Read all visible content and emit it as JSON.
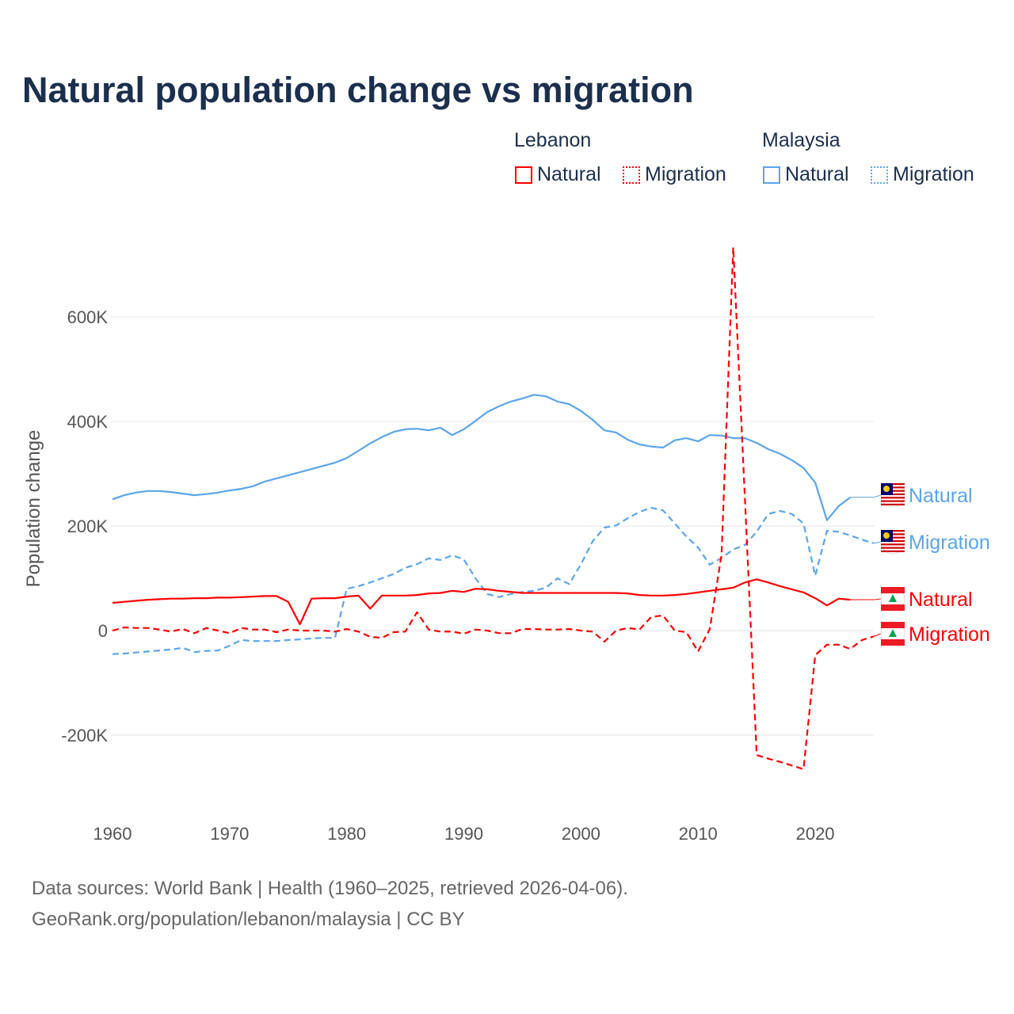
{
  "title": "Natural population change vs migration",
  "legend": {
    "groups": [
      {
        "name": "Lebanon",
        "items": [
          {
            "label": "Natural",
            "color": "#ff0000",
            "style": "solid"
          },
          {
            "label": "Migration",
            "color": "#ff0000",
            "style": "dotted"
          }
        ]
      },
      {
        "name": "Malaysia",
        "items": [
          {
            "label": "Natural",
            "color": "#5aa5ea",
            "style": "solid"
          },
          {
            "label": "Migration",
            "color": "#5aa5ea",
            "style": "dotted"
          }
        ]
      }
    ]
  },
  "footer": {
    "line1": "Data sources: World Bank | Health (1960–2025, retrieved 2026-04-06).",
    "line2": "GeoRank.org/population/lebanon/malaysia | CC BY"
  },
  "chart_data": {
    "type": "line",
    "title": "Natural population change vs migration",
    "xlabel": "",
    "ylabel": "Population change",
    "xlim": [
      1960,
      2025
    ],
    "ylim": [
      -290000,
      740000
    ],
    "x_ticks": [
      1960,
      1970,
      1980,
      1990,
      2000,
      2010,
      2020
    ],
    "y_ticks": [
      {
        "value": -200000,
        "label": "-200K"
      },
      {
        "value": 0,
        "label": "0"
      },
      {
        "value": 200000,
        "label": "200K"
      },
      {
        "value": 400000,
        "label": "400K"
      },
      {
        "value": 600000,
        "label": "600K"
      }
    ],
    "grid": true,
    "series": [
      {
        "name": "Malaysia Natural",
        "end_label": "Natural",
        "country": "Malaysia",
        "color": "#5aa5ea",
        "dash": false,
        "start": 1960,
        "values": [
          251,
          259,
          264,
          267,
          267,
          265,
          262,
          259,
          261,
          264,
          268,
          271,
          276,
          285,
          291,
          297,
          303,
          309,
          315,
          321,
          330,
          344,
          358,
          370,
          380,
          385,
          386,
          383,
          388,
          374,
          385,
          401,
          418,
          429,
          438,
          444,
          451,
          448,
          438,
          433,
          420,
          403,
          383,
          379,
          365,
          356,
          352,
          350,
          364,
          368,
          362,
          374,
          373,
          368,
          368,
          359,
          347,
          338,
          326,
          311,
          283,
          211,
          238,
          255
        ]
      },
      {
        "name": "Malaysia Migration",
        "end_label": "Migration",
        "country": "Malaysia",
        "color": "#5aa5ea",
        "dash": true,
        "start": 1960,
        "values": [
          -45,
          -44,
          -42,
          -40,
          -38,
          -36,
          -33,
          -41,
          -39,
          -38,
          -29,
          -18,
          -20,
          -20,
          -20,
          -18,
          -17,
          -15,
          -14,
          -14,
          80,
          85,
          92,
          100,
          108,
          120,
          127,
          138,
          135,
          144,
          136,
          100,
          70,
          64,
          70,
          74,
          76,
          82,
          100,
          89,
          127,
          171,
          197,
          201,
          215,
          227,
          235,
          230,
          205,
          180,
          159,
          126,
          139,
          155,
          164,
          189,
          223,
          229,
          223,
          205,
          105,
          191,
          189,
          182,
          174,
          167
        ]
      },
      {
        "name": "Lebanon Natural",
        "end_label": "Natural",
        "country": "Lebanon",
        "color": "#ff0000",
        "dash": false,
        "start": 1960,
        "values": [
          53,
          55,
          57,
          59,
          60,
          61,
          61,
          62,
          62,
          63,
          63,
          64,
          65,
          66,
          66,
          55,
          12,
          61,
          62,
          62,
          65,
          67,
          42,
          67,
          67,
          67,
          68,
          71,
          72,
          76,
          74,
          80,
          79,
          76,
          74,
          72,
          72,
          72,
          72,
          72,
          72,
          72,
          72,
          72,
          71,
          68,
          67,
          67,
          68,
          70,
          73,
          76,
          79,
          82,
          92,
          98,
          92,
          85,
          79,
          73,
          62,
          48,
          61,
          59
        ]
      },
      {
        "name": "Lebanon Migration",
        "end_label": "Migration",
        "country": "Lebanon",
        "color": "#ff0000",
        "dash": true,
        "start": 1960,
        "values": [
          0,
          6,
          5,
          5,
          2,
          -2,
          3,
          -5,
          5,
          0,
          -5,
          5,
          2,
          2,
          -3,
          2,
          0,
          0,
          0,
          -2,
          3,
          -2,
          -12,
          -14,
          -3,
          -2,
          35,
          2,
          -2,
          -2,
          -6,
          2,
          0,
          -5,
          -5,
          3,
          3,
          2,
          2,
          3,
          0,
          -2,
          -21,
          0,
          5,
          2,
          26,
          29,
          0,
          -3,
          -40,
          3,
          145,
          733,
          250,
          -238,
          -245,
          -251,
          -258,
          -265,
          -47,
          -27,
          -27,
          -35,
          -18,
          -11
        ]
      }
    ],
    "value_unit": "thousands"
  }
}
